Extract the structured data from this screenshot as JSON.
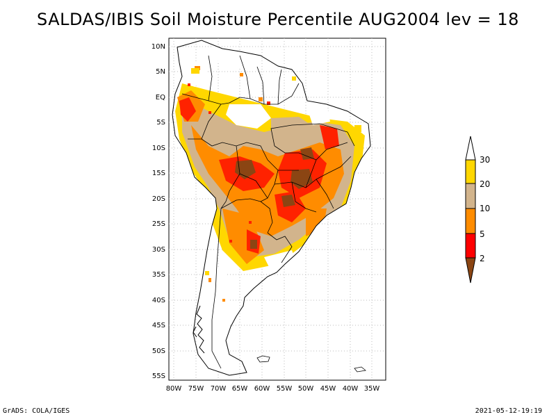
{
  "title": "SALDAS/IBIS Soil Moisture Percentile AUG2004 lev = 18",
  "map": {
    "lat_labels": [
      "10N",
      "5N",
      "EQ",
      "5S",
      "10S",
      "15S",
      "20S",
      "25S",
      "30S",
      "35S",
      "40S",
      "45S",
      "50S",
      "55S"
    ],
    "lon_labels": [
      "80W",
      "75W",
      "70W",
      "65W",
      "60W",
      "55W",
      "50W",
      "45W",
      "40W",
      "35W"
    ],
    "lat_range": [
      11.5,
      -55.5
    ],
    "lon_range": [
      -81,
      -33
    ]
  },
  "legend": {
    "labels": [
      "2",
      "5",
      "10",
      "20",
      "30"
    ],
    "colors": [
      "#8b4513",
      "#ff0000",
      "#ff8c00",
      "#d2b48c",
      "#ffd700",
      "#ffffff"
    ]
  },
  "footer": {
    "left": "GrADS: COLA/IGES",
    "right": "2021-05-12-19:19"
  }
}
